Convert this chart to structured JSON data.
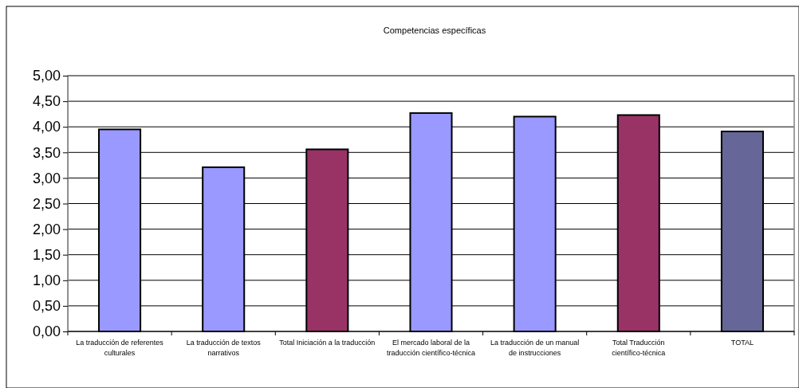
{
  "chart_data": {
    "type": "bar",
    "title": "Competencias específicas",
    "categories": [
      "La traducción de referentes culturales",
      "La traducción de textos narrativos",
      "Total Iniciación a la traducción",
      "El mercado laboral de la traducción científico-técnica",
      "La traducción de un manual de instrucciones",
      "Total Traducción científico-técnica",
      "TOTAL"
    ],
    "values": [
      3.95,
      3.21,
      3.56,
      4.27,
      4.2,
      4.23,
      3.91
    ],
    "colors": [
      "#9999ff",
      "#9999ff",
      "#993366",
      "#9999ff",
      "#9999ff",
      "#993366",
      "#666699"
    ],
    "ylim": [
      0,
      5
    ],
    "yticks": [
      {
        "value": 0,
        "label": "0,00"
      },
      {
        "value": 0.5,
        "label": "0,50"
      },
      {
        "value": 1,
        "label": "1,00"
      },
      {
        "value": 1.5,
        "label": "1,50"
      },
      {
        "value": 2,
        "label": "2,00"
      },
      {
        "value": 2.5,
        "label": "2,50"
      },
      {
        "value": 3,
        "label": "3,00"
      },
      {
        "value": 3.5,
        "label": "3,50"
      },
      {
        "value": 4,
        "label": "4,00"
      },
      {
        "value": 4.5,
        "label": "4,50"
      },
      {
        "value": 5,
        "label": "5,00"
      }
    ],
    "grid": "y"
  }
}
